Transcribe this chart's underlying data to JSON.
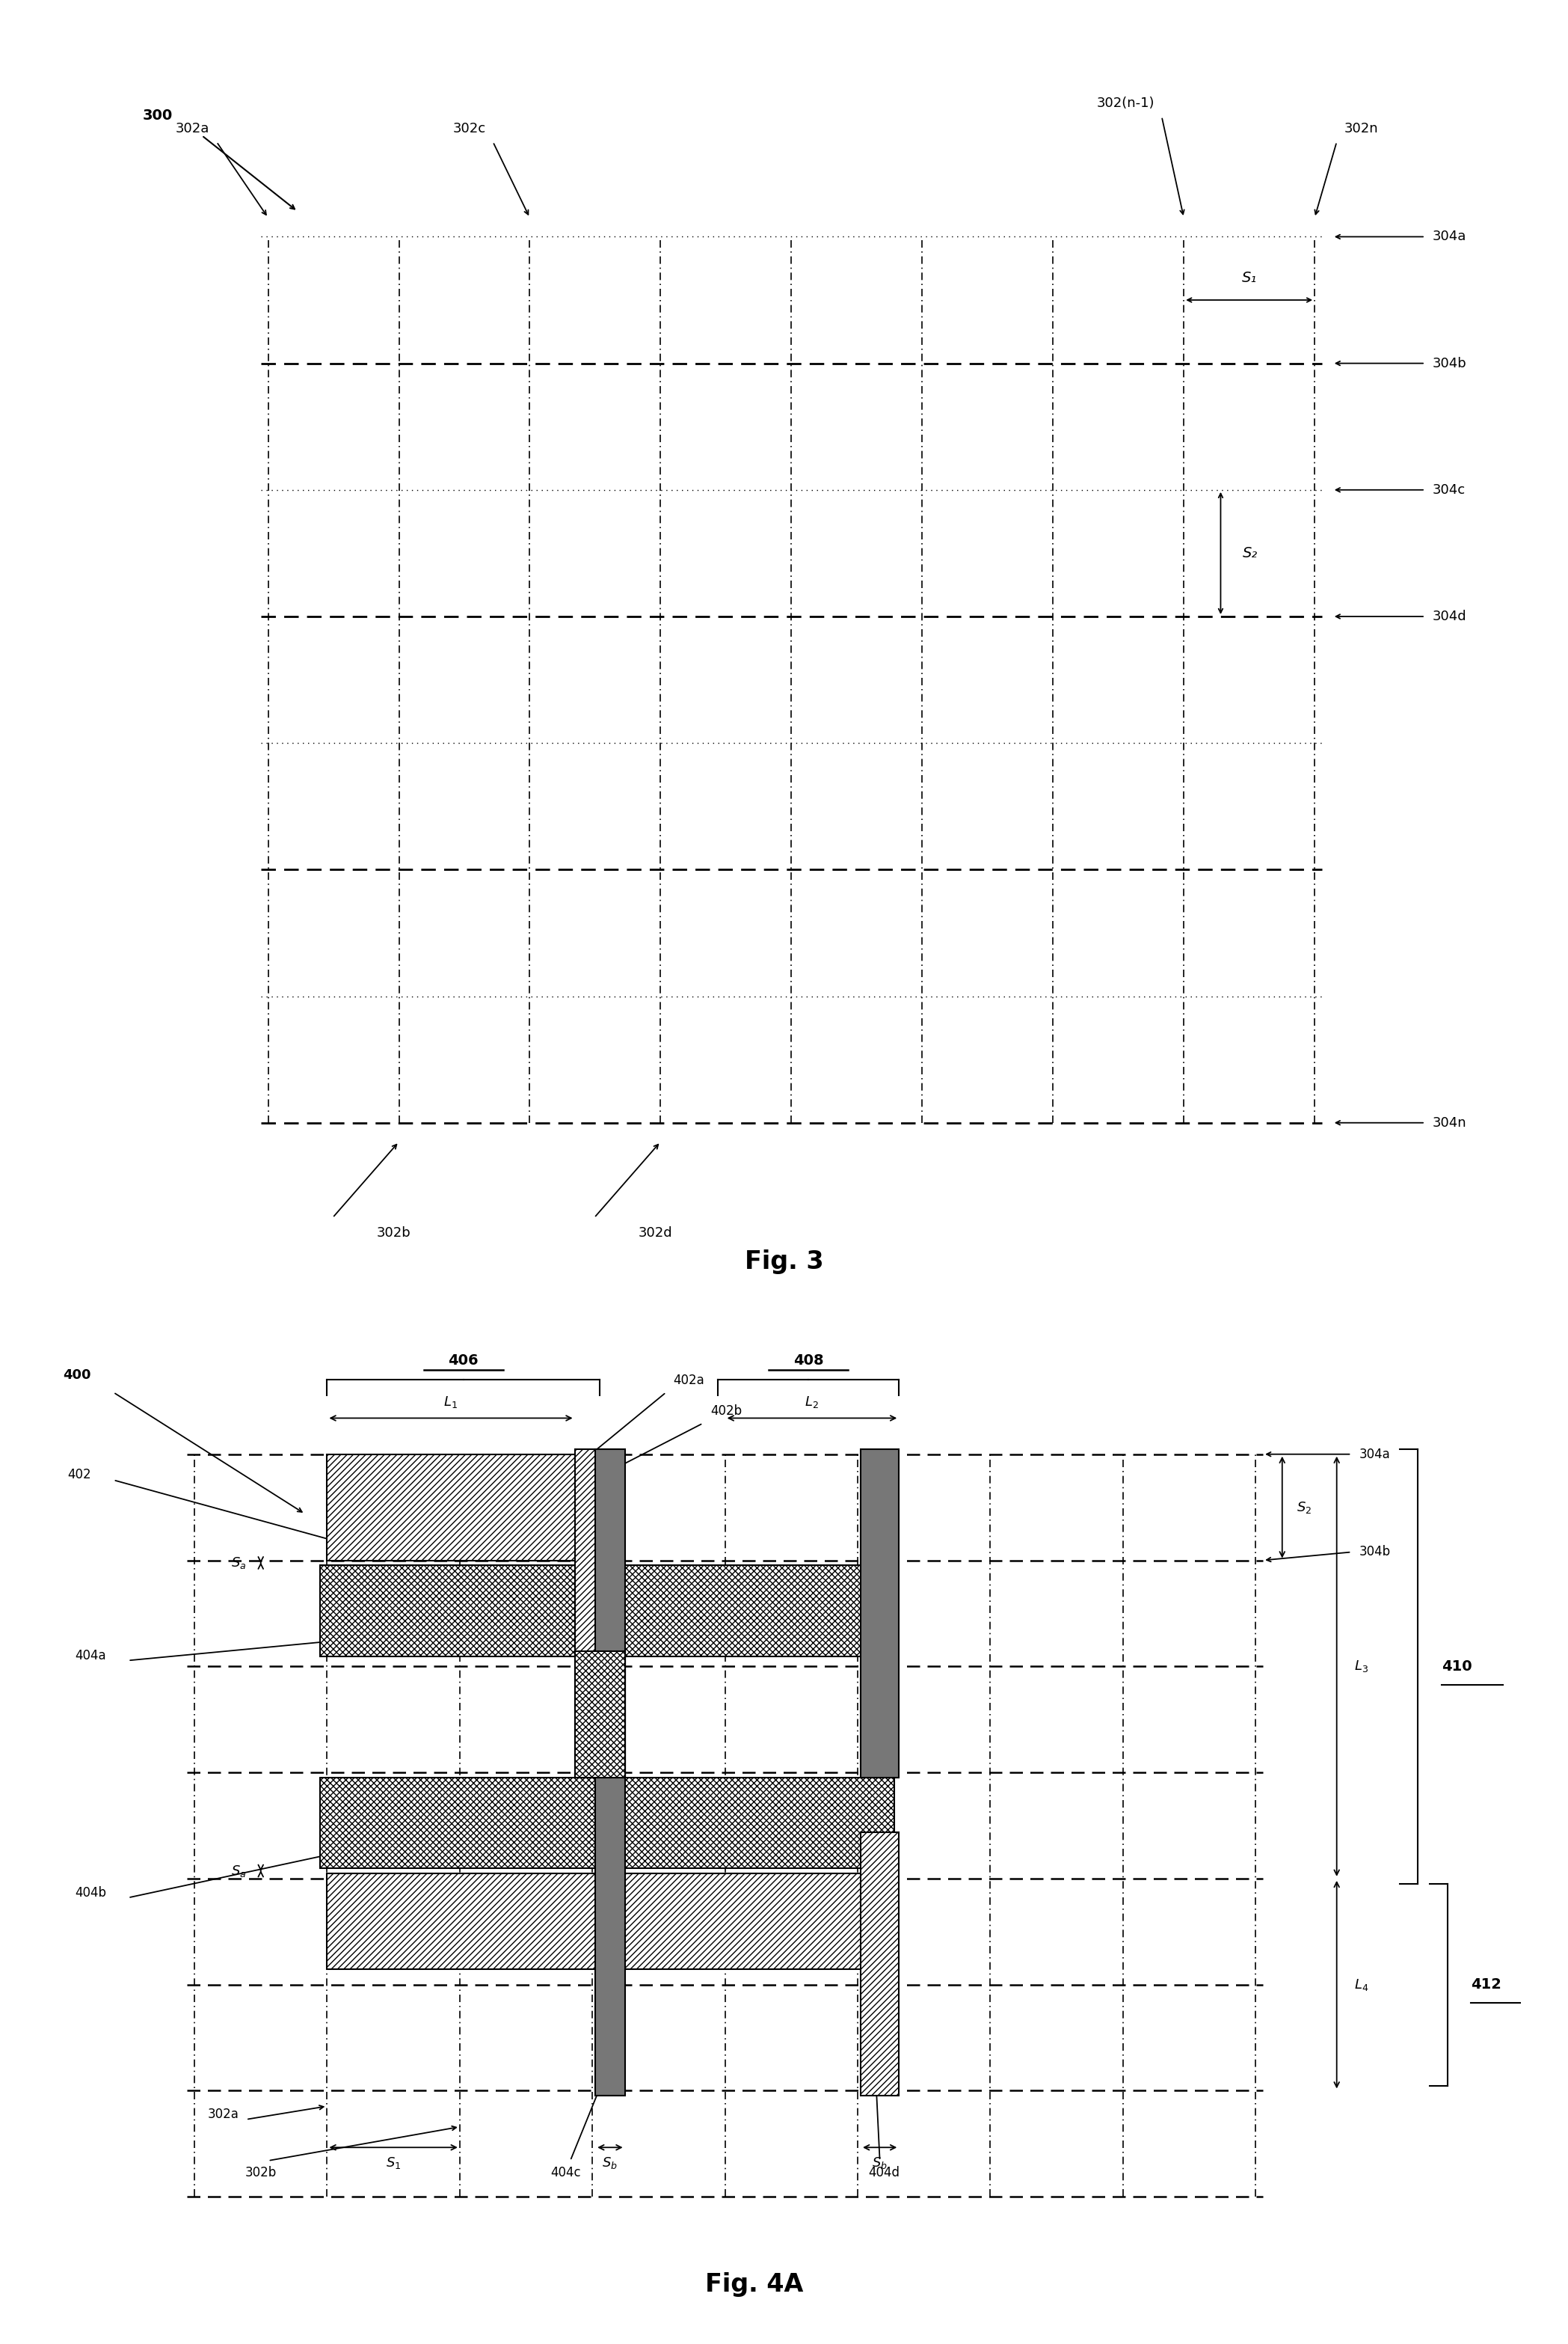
{
  "fig3": {
    "title": "Fig. 3",
    "label_300": "300",
    "grid_cols": 9,
    "grid_rows": 8,
    "labels_top_left": [
      "302a",
      "302c"
    ],
    "labels_top_right": [
      "302(n-1)",
      "302n"
    ],
    "labels_right": [
      "304a",
      "304b",
      "304c",
      "304d",
      "304n"
    ],
    "label_S1": "S₁",
    "label_S2": "S₂",
    "label_302b": "302b",
    "label_302d": "302d"
  },
  "fig4a": {
    "title": "Fig. 4A",
    "label_400": "400",
    "label_402": "402",
    "label_402a": "402a",
    "label_402b": "402b",
    "label_404a": "404a",
    "label_404b": "404b",
    "label_404c": "404c",
    "label_404d": "404d",
    "label_302a": "302a",
    "label_302b": "302b",
    "label_304a": "304a",
    "label_304b": "304b",
    "label_406": "406",
    "label_408": "408",
    "label_410": "410",
    "label_412": "412",
    "label_L1": "L$_1$",
    "label_L2": "L$_2$",
    "label_L3": "L$_3$",
    "label_L4": "L$_4$",
    "label_Sa": "S$_a$",
    "label_Sb": "S$_b$",
    "label_S1": "S$_1$",
    "label_S2": "S$_2$"
  },
  "colors": {
    "dark_gray": "#666666",
    "mid_gray": "#999999",
    "line_black": "#000000",
    "white": "#ffffff"
  }
}
